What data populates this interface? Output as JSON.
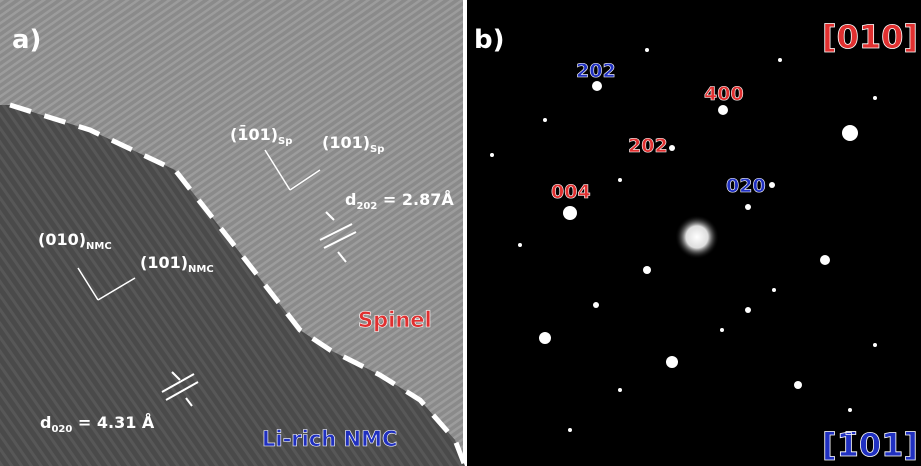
{
  "panel_a": {
    "label": "a)",
    "spinel_axis_1": {
      "main": "(1̄01)",
      "sub": "Sp"
    },
    "spinel_axis_2": {
      "main": "(101)",
      "sub": "Sp"
    },
    "spinel_spacing": {
      "main": "d",
      "sub": "202",
      "rest": " = 2.87Å"
    },
    "nmc_axis_1": {
      "main": "(010)",
      "sub": "NMC"
    },
    "nmc_axis_2": {
      "main": "(101)",
      "sub": "NMC"
    },
    "spinel_region": "Spinel",
    "nmc_spacing": {
      "main": "d",
      "sub": "020",
      "rest": " = 4.31 Å"
    },
    "nmc_region": "Li-rich NMC"
  },
  "panel_b": {
    "label": "b)",
    "zone_axis_top": "[010]",
    "zone_axis_bottom": "[1̄01]",
    "spots": [
      "202",
      "400",
      "202",
      "004",
      "020"
    ]
  }
}
